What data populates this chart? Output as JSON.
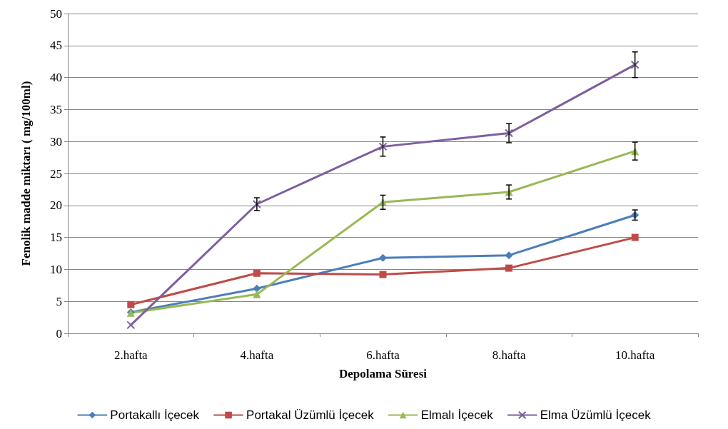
{
  "chart_data": {
    "type": "line",
    "xlabel": "Depolama Süresi",
    "ylabel": "Fenolik madde miktarı ( mg/100ml)",
    "categories": [
      "2.hafta",
      "4.hafta",
      "6.hafta",
      "8.hafta",
      "10.hafta"
    ],
    "ylim": [
      0,
      50
    ],
    "yticks": [
      0,
      5,
      10,
      15,
      20,
      25,
      30,
      35,
      40,
      45,
      50
    ],
    "grid": "y",
    "legend": "bottom",
    "series": [
      {
        "name": "Portakallı İçecek",
        "color": "#4a7ebb",
        "marker": "diamond",
        "values": [
          3.3,
          7.0,
          11.8,
          12.2,
          18.5
        ],
        "errors": [
          null,
          null,
          null,
          null,
          0.8
        ]
      },
      {
        "name": "Portakal Üzümlü İçecek",
        "color": "#be4b48",
        "marker": "square",
        "values": [
          4.5,
          9.4,
          9.2,
          10.2,
          15.0
        ]
      },
      {
        "name": "Elmalı İçecek",
        "color": "#98b954",
        "marker": "triangle",
        "values": [
          3.2,
          6.1,
          20.5,
          22.1,
          28.5
        ],
        "errors": [
          null,
          null,
          1.1,
          1.1,
          1.4
        ]
      },
      {
        "name": "Elma Üzümlü İçecek",
        "color": "#7d5fa0",
        "marker": "cross",
        "values": [
          1.3,
          20.2,
          29.2,
          31.3,
          42.0
        ],
        "errors": [
          null,
          1.0,
          1.5,
          1.5,
          2.0
        ]
      }
    ]
  }
}
